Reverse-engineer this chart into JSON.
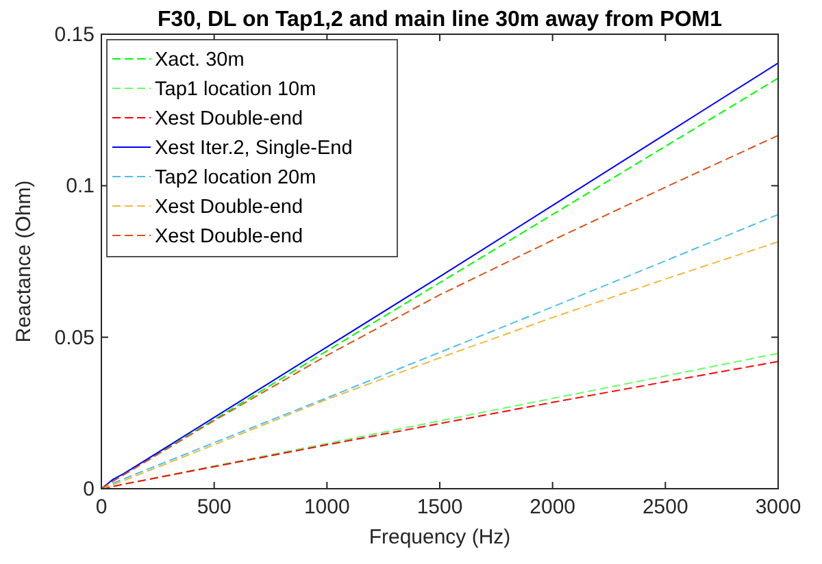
{
  "chart_data": {
    "type": "line",
    "title": "F30, DL on Tap1,2 and main line 30m away from POM1",
    "xlabel": "Frequency (Hz)",
    "ylabel": "Reactance (Ohm)",
    "xlim": [
      0,
      3000
    ],
    "ylim": [
      0,
      0.15
    ],
    "xticks": [
      0,
      500,
      1000,
      1500,
      2000,
      2500,
      3000
    ],
    "yticks": [
      0,
      0.05,
      0.1,
      0.15
    ],
    "legend": "top left",
    "grid": false,
    "marker": "none",
    "x": [
      0,
      50,
      100,
      500,
      1000,
      1500,
      2000,
      2500,
      3000
    ],
    "series": [
      {
        "name": "Xact. 30m",
        "color": "#00ff00",
        "line_style": "dashed",
        "values": [
          0,
          0.0025,
          0.0048,
          0.0228,
          0.0455,
          0.068,
          0.0905,
          0.113,
          0.1355
        ]
      },
      {
        "name": "Tap1 location 10m",
        "color": "#66ff66",
        "line_style": "dashed",
        "values": [
          0,
          0.0008,
          0.0015,
          0.0075,
          0.0149,
          0.0224,
          0.0298,
          0.0372,
          0.0447
        ]
      },
      {
        "name": "Xest Double-end",
        "color": "#ff0000",
        "line_style": "dashed",
        "values": [
          0,
          0.0007,
          0.0015,
          0.0073,
          0.0145,
          0.0215,
          0.0285,
          0.0353,
          0.042
        ]
      },
      {
        "name": "Xest Iter.2, Single-End",
        "color": "#0000ff",
        "line_style": "solid",
        "values": [
          0,
          0.003,
          0.005,
          0.0235,
          0.0468,
          0.07,
          0.0935,
          0.117,
          0.1405
        ]
      },
      {
        "name": "Tap2 location 20m",
        "color": "#4dbeee",
        "line_style": "dashed",
        "values": [
          null,
          0.0017,
          0.0033,
          0.0152,
          0.03,
          0.045,
          0.06,
          0.0752,
          0.0905
        ]
      },
      {
        "name": "Xest Double-end",
        "color": "#f0b840",
        "line_style": "dashed",
        "values": [
          0,
          0.0013,
          0.0027,
          0.0145,
          0.0295,
          0.0432,
          0.0565,
          0.0692,
          0.0815
        ]
      },
      {
        "name": "Xest Double-end",
        "color": "#d95319",
        "line_style": "dashed",
        "values": [
          0,
          0.0024,
          0.0046,
          0.0225,
          0.044,
          0.064,
          0.082,
          0.0995,
          0.1166
        ]
      }
    ]
  }
}
